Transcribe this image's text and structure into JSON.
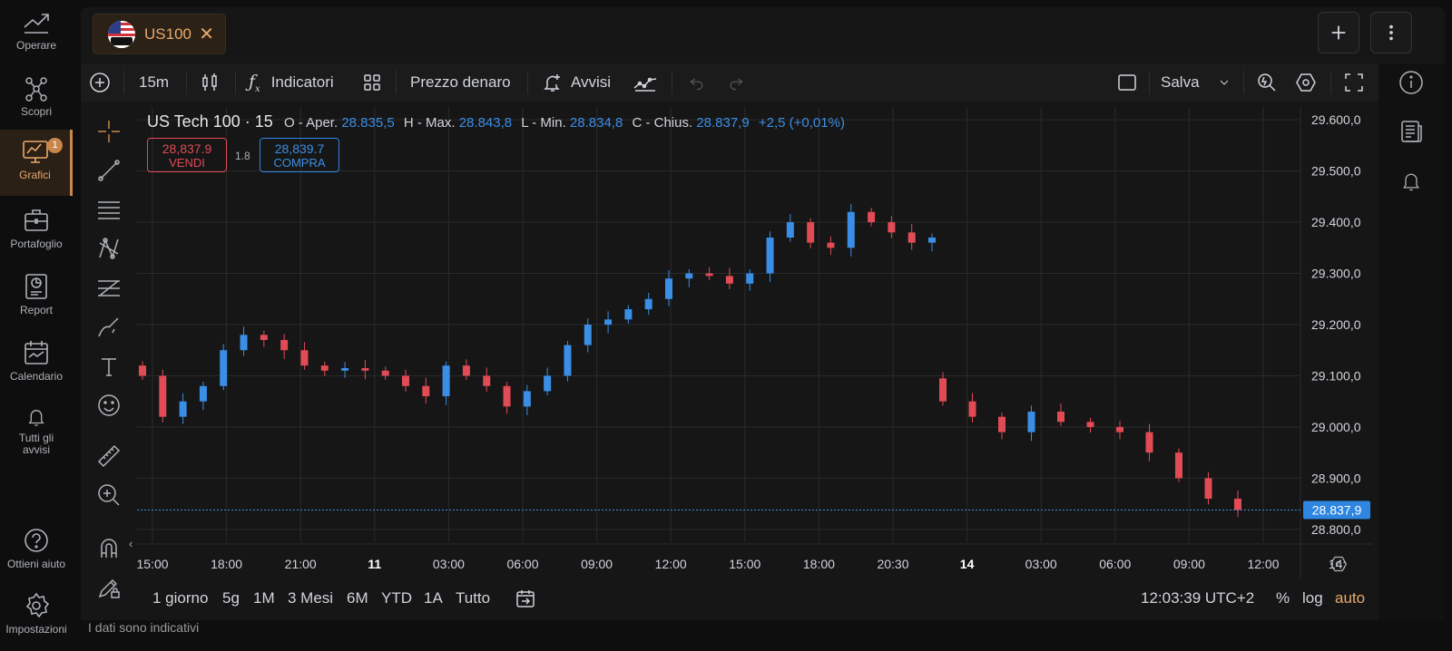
{
  "nav": {
    "items": [
      {
        "label": "Operare",
        "icon": "trend-line-icon"
      },
      {
        "label": "Scopri",
        "icon": "network-icon"
      },
      {
        "label": "Grafici",
        "icon": "chart-monitor-icon",
        "badge": "1"
      },
      {
        "label": "Portafoglio",
        "icon": "briefcase-icon"
      },
      {
        "label": "Report",
        "icon": "report-icon"
      },
      {
        "label": "Calendario",
        "icon": "calendar-icon"
      },
      {
        "label": "Tutti gli avvisi",
        "icon": "bell-icon"
      },
      {
        "label": "Ottieni aiuto",
        "icon": "help-icon"
      },
      {
        "label": "Impostazioni",
        "icon": "gear-icon"
      }
    ]
  },
  "tab": {
    "symbol": "US100",
    "flag_label": "US100"
  },
  "toolbar": {
    "interval": "15m",
    "indicators": "Indicatori",
    "price_type": "Prezzo denaro",
    "alerts": "Avvisi",
    "save": "Salva"
  },
  "legend": {
    "title": "US Tech 100 · 15",
    "o_label": "O - Aper.",
    "o_val": "28.835,5",
    "h_label": "H - Max.",
    "h_val": "28.843,8",
    "l_label": "L - Min.",
    "l_val": "28.834,8",
    "c_label": "C - Chius.",
    "c_val": "28.837,9",
    "change": "+2,5 (+0,01%)"
  },
  "trade": {
    "sell_price": "28,837.9",
    "sell_label": "VENDI",
    "spread": "1.8",
    "buy_price": "28,839.7",
    "buy_label": "COMPRA"
  },
  "chart_data": {
    "type": "candlestick",
    "y_ticks": [
      "29.600,0",
      "29.500,0",
      "29.400,0",
      "29.300,0",
      "29.200,0",
      "29.100,0",
      "29.000,0",
      "28.900,0",
      "28.800,0"
    ],
    "ylim": [
      28775,
      29625
    ],
    "x_ticks": [
      "15:00",
      "18:00",
      "21:00",
      "11",
      "03:00",
      "06:00",
      "09:00",
      "12:00",
      "15:00",
      "18:00",
      "20:30",
      "14",
      "03:00",
      "06:00",
      "09:00",
      "12:00",
      "14:"
    ],
    "last_price": 28837.9,
    "last_price_label": "28.837,9",
    "grid": true,
    "close_series": [
      29100,
      29020,
      29050,
      29080,
      29150,
      29180,
      29170,
      29150,
      29120,
      29110,
      29115,
      29110,
      29100,
      29080,
      29060,
      29120,
      29100,
      29080,
      29040,
      29070,
      29100,
      29160,
      29200,
      29210,
      29230,
      29250,
      29290,
      29300,
      29295,
      29280,
      29300,
      29370,
      29400,
      29360,
      29350,
      29420,
      29400,
      29380,
      29360,
      29370,
      29050,
      29020,
      28990,
      29030,
      29010,
      29000,
      28990,
      28950,
      28900,
      28860,
      28838
    ]
  },
  "bottom": {
    "ranges": [
      "1 giorno",
      "5g",
      "1M",
      "3 Mesi",
      "6M",
      "YTD",
      "1A",
      "Tutto"
    ],
    "time": "12:03:39 UTC+2",
    "percent": "%",
    "log": "log",
    "auto": "auto"
  },
  "disclaimer": "I dati sono indicativi",
  "colors": {
    "up": "#3b8ee6",
    "down": "#e04b55",
    "accent": "#e9a96a"
  }
}
